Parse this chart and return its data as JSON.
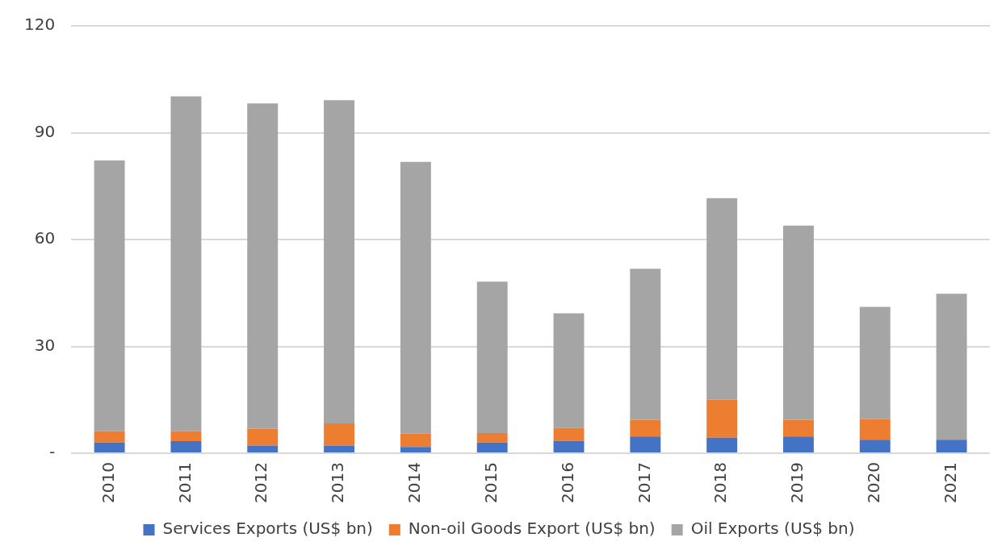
{
  "chart_data": {
    "type": "bar",
    "stacked": true,
    "categories": [
      "2010",
      "2011",
      "2012",
      "2013",
      "2014",
      "2015",
      "2016",
      "2017",
      "2018",
      "2019",
      "2020",
      "2021"
    ],
    "series": [
      {
        "name": "Services Exports (US$ bn)",
        "color": "#4472c4",
        "values": [
          3.0,
          3.4,
          2.2,
          2.2,
          1.8,
          3.0,
          3.5,
          4.7,
          4.4,
          4.7,
          3.8,
          3.8
        ]
      },
      {
        "name": "Non-oil Goods Export (US$ bn)",
        "color": "#ed7d31",
        "values": [
          3.2,
          2.8,
          4.7,
          6.2,
          3.7,
          2.7,
          3.6,
          4.7,
          10.6,
          4.7,
          5.8,
          0
        ]
      },
      {
        "name": "Oil Exports (US$ bn)",
        "color": "#a5a5a5",
        "values": [
          76,
          94,
          91.3,
          90.7,
          76.3,
          42.5,
          32.2,
          42.4,
          56.6,
          54.5,
          31.5,
          41
        ]
      }
    ],
    "ylim": [
      0,
      120
    ],
    "yticks": [
      {
        "value": 0,
        "label": "-"
      },
      30,
      60,
      90,
      120
    ],
    "grid": "y",
    "legend": "bottom"
  }
}
